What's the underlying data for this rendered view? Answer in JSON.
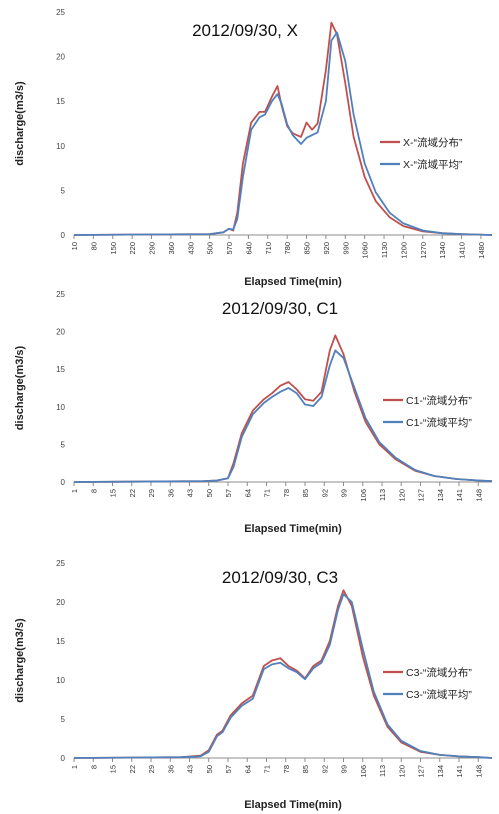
{
  "chart_data": [
    {
      "type": "line",
      "title": "2012/09/30, X",
      "xlabel": "Elapsed Time(min)",
      "ylabel": "discharge(m3/s)",
      "ylim": [
        0,
        25
      ],
      "yticks": [
        0,
        5,
        10,
        15,
        20,
        25
      ],
      "xlim": [
        10,
        1520
      ],
      "xticks": [
        10,
        80,
        150,
        220,
        290,
        360,
        430,
        500,
        570,
        640,
        710,
        780,
        850,
        920,
        990,
        1060,
        1130,
        1200,
        1270,
        1340,
        1410,
        1480
      ],
      "grid": false,
      "legend": "right",
      "series": [
        {
          "name": "X-“流域分布”",
          "color": "#c0504d",
          "x": [
            10,
            500,
            550,
            570,
            585,
            600,
            620,
            650,
            680,
            700,
            725,
            745,
            760,
            780,
            800,
            830,
            850,
            870,
            890,
            920,
            940,
            960,
            990,
            1020,
            1060,
            1100,
            1150,
            1200,
            1270,
            1340,
            1410,
            1520
          ],
          "y": [
            0,
            0.1,
            0.3,
            0.7,
            0.5,
            2.5,
            8,
            12.6,
            13.8,
            13.8,
            15.5,
            16.7,
            14.5,
            12.2,
            11.4,
            11,
            12.6,
            11.8,
            12.5,
            18.5,
            23.8,
            22.5,
            17,
            11,
            6.5,
            3.8,
            2,
            1,
            0.4,
            0.2,
            0.1,
            0
          ]
        },
        {
          "name": "X-“流域平均”",
          "color": "#4f81bd",
          "x": [
            10,
            500,
            550,
            570,
            585,
            600,
            620,
            650,
            680,
            700,
            725,
            745,
            760,
            780,
            800,
            830,
            850,
            870,
            890,
            920,
            940,
            960,
            990,
            1020,
            1060,
            1100,
            1150,
            1200,
            1270,
            1340,
            1410,
            1520
          ],
          "y": [
            0,
            0.1,
            0.3,
            0.7,
            0.6,
            1.8,
            6.5,
            11.8,
            13.2,
            13.5,
            15,
            15.8,
            14.7,
            12.4,
            11.2,
            10.2,
            10.9,
            11.2,
            11.5,
            15,
            21.8,
            22.7,
            19.5,
            13.5,
            8,
            4.8,
            2.5,
            1.3,
            0.5,
            0.2,
            0.1,
            0
          ]
        }
      ]
    },
    {
      "type": "line",
      "title": "2012/09/30, C1",
      "xlabel": "Elapsed Time(min)",
      "ylabel": "discharge(m3/s)",
      "ylim": [
        0,
        25
      ],
      "yticks": [
        0,
        5,
        10,
        15,
        20,
        25
      ],
      "xlim": [
        1,
        153
      ],
      "xticks": [
        1,
        8,
        15,
        22,
        29,
        36,
        43,
        50,
        57,
        64,
        71,
        78,
        85,
        92,
        99,
        106,
        113,
        120,
        127,
        134,
        141,
        148
      ],
      "grid": false,
      "legend": "right",
      "series": [
        {
          "name": "C1-“流域分布”",
          "color": "#c0504d",
          "x": [
            1,
            48,
            53,
            57,
            59,
            62,
            66,
            70,
            73,
            76,
            79,
            82,
            85,
            88,
            91,
            94,
            96,
            99,
            103,
            107,
            112,
            118,
            125,
            132,
            140,
            148,
            153
          ],
          "y": [
            0,
            0.1,
            0.2,
            0.5,
            2.5,
            6.5,
            9.5,
            11,
            11.8,
            12.8,
            13.3,
            12.3,
            11,
            10.8,
            12,
            17.5,
            19.5,
            17,
            12,
            8,
            5,
            3,
            1.5,
            0.8,
            0.4,
            0.2,
            0.1
          ]
        },
        {
          "name": "C1-“流域平均”",
          "color": "#4f81bd",
          "x": [
            1,
            48,
            53,
            57,
            59,
            62,
            66,
            70,
            73,
            76,
            79,
            82,
            85,
            88,
            91,
            94,
            96,
            99,
            103,
            107,
            112,
            118,
            125,
            132,
            140,
            148,
            153
          ],
          "y": [
            0,
            0.1,
            0.2,
            0.5,
            2,
            6,
            9,
            10.5,
            11.3,
            12,
            12.5,
            11.8,
            10.3,
            10.1,
            11.3,
            15.5,
            17.5,
            16.5,
            12.5,
            8.5,
            5.3,
            3.2,
            1.6,
            0.8,
            0.4,
            0.2,
            0.1
          ]
        }
      ]
    },
    {
      "type": "line",
      "title": "2012/09/30, C3",
      "xlabel": "Elapsed Time(min)",
      "ylabel": "discharge(m3/s)",
      "ylim": [
        0,
        25
      ],
      "yticks": [
        0,
        5,
        10,
        15,
        20,
        25
      ],
      "xlim": [
        1,
        153
      ],
      "xticks": [
        1,
        8,
        15,
        22,
        29,
        36,
        43,
        50,
        57,
        64,
        71,
        78,
        85,
        92,
        99,
        106,
        113,
        120,
        127,
        134,
        141,
        148
      ],
      "grid": false,
      "legend": "right",
      "series": [
        {
          "name": "C3-“流域分布”",
          "color": "#c0504d",
          "x": [
            1,
            40,
            47,
            50,
            53,
            55,
            58,
            62,
            66,
            70,
            73,
            76,
            79,
            82,
            85,
            88,
            91,
            94,
            97,
            99,
            102,
            106,
            110,
            115,
            120,
            127,
            134,
            141,
            148,
            153
          ],
          "y": [
            0,
            0.1,
            0.3,
            1,
            3,
            3.5,
            5.5,
            7,
            8,
            11.8,
            12.5,
            12.8,
            11.8,
            11.2,
            10.2,
            11.8,
            12.5,
            15,
            19.5,
            21.5,
            19.5,
            13,
            8,
            4,
            2,
            0.8,
            0.4,
            0.2,
            0.1,
            0
          ]
        },
        {
          "name": "C3-“流域平均”",
          "color": "#4f81bd",
          "x": [
            1,
            40,
            47,
            50,
            53,
            55,
            58,
            62,
            66,
            70,
            73,
            76,
            79,
            82,
            85,
            88,
            91,
            94,
            97,
            99,
            102,
            106,
            110,
            115,
            120,
            127,
            134,
            141,
            148,
            153
          ],
          "y": [
            0,
            0.1,
            0.2,
            0.8,
            2.8,
            3.3,
            5.2,
            6.7,
            7.6,
            11.4,
            12,
            12.2,
            11.5,
            11,
            10.1,
            11.5,
            12.2,
            14.5,
            19,
            21,
            20,
            14,
            8.5,
            4.3,
            2.2,
            0.9,
            0.4,
            0.2,
            0.1,
            0
          ]
        }
      ]
    }
  ]
}
